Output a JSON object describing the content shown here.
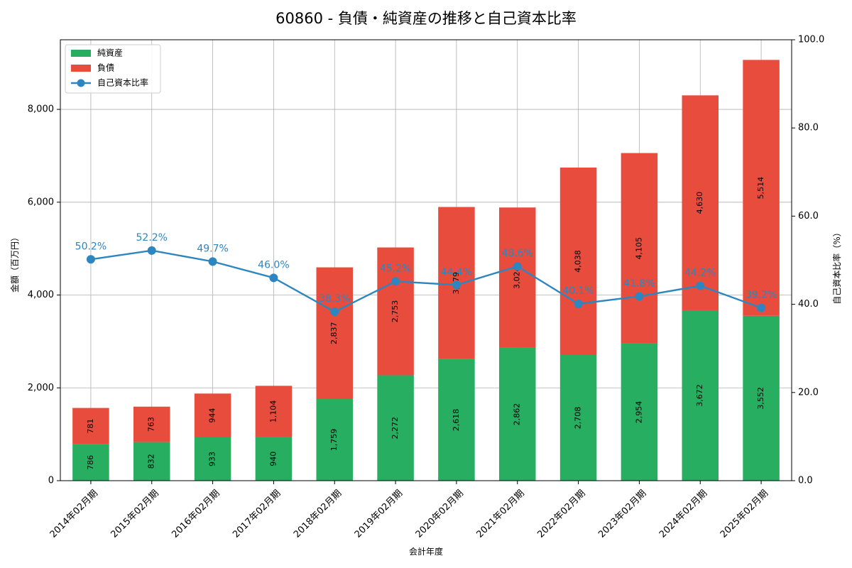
{
  "chart_data": {
    "type": "bar",
    "stacked": true,
    "title": "60860 - 負債・純資産の推移と自己資本比率",
    "xlabel": "会計年度",
    "ylabel": "金額（百万円）",
    "y2label": "自己資本比率（%）",
    "categories": [
      "2014年02月期",
      "2015年02月期",
      "2016年02月期",
      "2017年02月期",
      "2018年02月期",
      "2019年02月期",
      "2020年02月期",
      "2021年02月期",
      "2022年02月期",
      "2023年02月期",
      "2024年02月期",
      "2025年02月期"
    ],
    "series": [
      {
        "name": "純資産",
        "type": "bar",
        "axis": "left",
        "color": "#27ae60",
        "values": [
          786,
          832,
          933,
          940,
          1759,
          2272,
          2618,
          2862,
          2708,
          2954,
          3672,
          3552
        ],
        "labels": [
          "786",
          "832",
          "933",
          "940",
          "1,759",
          "2,272",
          "2,618",
          "2,862",
          "2,708",
          "2,954",
          "3,672",
          "3,552"
        ]
      },
      {
        "name": "負債",
        "type": "bar",
        "axis": "left",
        "color": "#e74c3c",
        "values": [
          781,
          763,
          944,
          1104,
          2837,
          2753,
          3279,
          3024,
          4038,
          4105,
          4630,
          5514
        ],
        "labels": [
          "781",
          "763",
          "944",
          "1,104",
          "2,837",
          "2,753",
          "3,279",
          "3,024",
          "4,038",
          "4,105",
          "4,630",
          "5,514"
        ]
      },
      {
        "name": "自己資本比率",
        "type": "line",
        "axis": "right",
        "color": "#2e86c1",
        "values": [
          50.2,
          52.2,
          49.7,
          46.0,
          38.3,
          45.2,
          44.4,
          48.6,
          40.1,
          41.8,
          44.2,
          39.2
        ],
        "labels": [
          "50.2%",
          "52.2%",
          "49.7%",
          "46.0%",
          "38.3%",
          "45.2%",
          "44.4%",
          "48.6%",
          "40.1%",
          "41.8%",
          "44.2%",
          "39.2%"
        ]
      }
    ],
    "ylim": [
      0,
      9500
    ],
    "yticks": [
      0,
      2000,
      4000,
      6000,
      8000
    ],
    "ytick_labels": [
      "0",
      "2,000",
      "4,000",
      "6,000",
      "8,000"
    ],
    "y2lim": [
      0,
      100
    ],
    "y2ticks": [
      0,
      20,
      40,
      60,
      80,
      100
    ],
    "y2tick_labels": [
      "0.0",
      "20.0",
      "40.0",
      "60.0",
      "80.0",
      "100.0"
    ],
    "grid": true,
    "legend_position": "top-left"
  }
}
